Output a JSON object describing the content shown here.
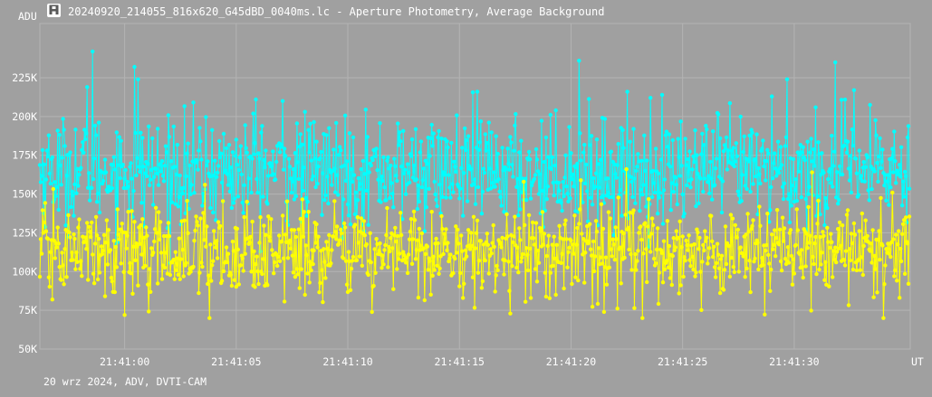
{
  "window": {
    "title": "20240920_214055_816x620_G45dBD_0040ms.lc - Aperture Photometry, Average Background",
    "icon": "app-logo-icon"
  },
  "footer": {
    "caption": "20 wrz 2024, ADV, DVTI-CAM"
  },
  "colors": {
    "background": "#a0a0a0",
    "grid": "#b4b4b4",
    "series_1": "#00ffff",
    "series_2": "#ffff00",
    "text": "#ffffff"
  },
  "chart_data": {
    "type": "line",
    "title": "20240920_214055_816x620_G45dBD_0040ms.lc - Aperture Photometry, Average Background",
    "ylabel": "ADU",
    "xlabel": "UT",
    "x_range": [
      "21:40:56.2",
      "21:41:35.2"
    ],
    "ylim": [
      50000,
      260000
    ],
    "y_ticks": [
      {
        "value": 50000,
        "label": "50K"
      },
      {
        "value": 75000,
        "label": "75K"
      },
      {
        "value": 100000,
        "label": "100K"
      },
      {
        "value": 125000,
        "label": "125K"
      },
      {
        "value": 150000,
        "label": "150K"
      },
      {
        "value": 175000,
        "label": "175K"
      },
      {
        "value": 200000,
        "label": "200K"
      },
      {
        "value": 225000,
        "label": "225K"
      }
    ],
    "x_ticks": [
      {
        "value": 60,
        "label": "21:41:00"
      },
      {
        "value": 65,
        "label": "21:41:05"
      },
      {
        "value": 70,
        "label": "21:41:10"
      },
      {
        "value": 75,
        "label": "21:41:15"
      },
      {
        "value": 80,
        "label": "21:41:20"
      },
      {
        "value": 85,
        "label": "21:41:25"
      },
      {
        "value": 90,
        "label": "21:41:30"
      }
    ],
    "x_start_seconds": 56.2,
    "x_end_seconds": 95.2,
    "grid": true,
    "series": [
      {
        "color": "#00ffff",
        "mean": 165000,
        "spread": 17000,
        "spikes": [
          {
            "t": 58.3,
            "v": 219000
          },
          {
            "t": 58.55,
            "v": 242000
          },
          {
            "t": 60.45,
            "v": 232000
          },
          {
            "t": 60.6,
            "v": 224000
          },
          {
            "t": 80.35,
            "v": 236000
          },
          {
            "t": 84.1,
            "v": 214000
          },
          {
            "t": 89.0,
            "v": 213000
          },
          {
            "t": 89.7,
            "v": 224000
          },
          {
            "t": 91.85,
            "v": 235000
          },
          {
            "t": 92.7,
            "v": 217000
          },
          {
            "t": 75.8,
            "v": 216000
          },
          {
            "t": 65.9,
            "v": 211000
          },
          {
            "t": 67.1,
            "v": 210000
          }
        ]
      },
      {
        "color": "#ffff00",
        "mean": 113000,
        "spread": 14000,
        "spikes": [
          {
            "t": 60.0,
            "v": 72000
          },
          {
            "t": 63.8,
            "v": 70000
          },
          {
            "t": 68.1,
            "v": 85000
          },
          {
            "t": 71.1,
            "v": 74000
          },
          {
            "t": 77.9,
            "v": 158000
          },
          {
            "t": 81.5,
            "v": 74000
          },
          {
            "t": 82.5,
            "v": 166000
          },
          {
            "t": 83.2,
            "v": 70000
          },
          {
            "t": 90.8,
            "v": 164000
          },
          {
            "t": 94.0,
            "v": 70000
          },
          {
            "t": 94.4,
            "v": 151000
          },
          {
            "t": 63.6,
            "v": 156000
          }
        ]
      }
    ]
  }
}
